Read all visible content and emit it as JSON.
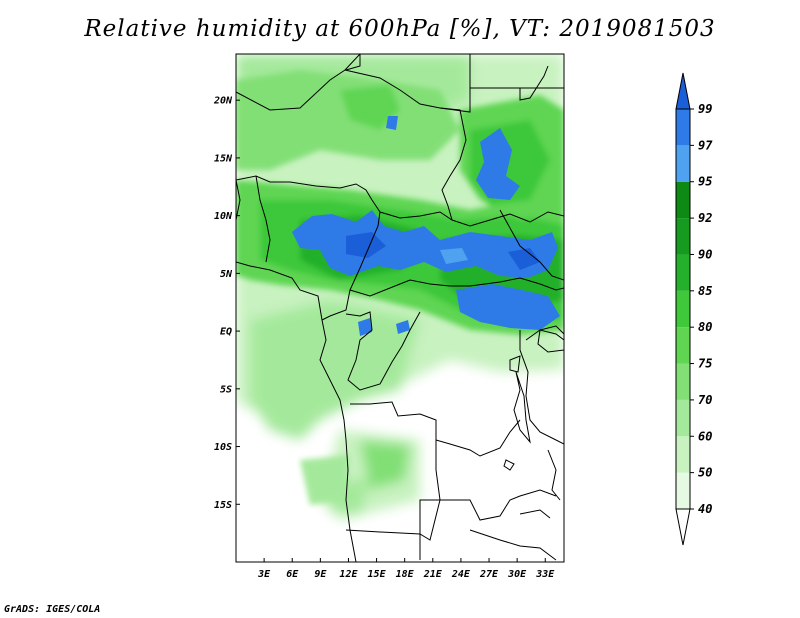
{
  "title": "Relative humidity at 600hPa [%], VT: 2019081503",
  "credit": "GrADS: IGES/COLA",
  "map": {
    "lon_range": [
      0,
      35
    ],
    "lat_range": [
      -20,
      24
    ],
    "x_ticks": [
      {
        "lon": 3,
        "label": "3E"
      },
      {
        "lon": 6,
        "label": "6E"
      },
      {
        "lon": 9,
        "label": "9E"
      },
      {
        "lon": 12,
        "label": "12E"
      },
      {
        "lon": 15,
        "label": "15E"
      },
      {
        "lon": 18,
        "label": "18E"
      },
      {
        "lon": 21,
        "label": "21E"
      },
      {
        "lon": 24,
        "label": "24E"
      },
      {
        "lon": 27,
        "label": "27E"
      },
      {
        "lon": 30,
        "label": "30E"
      },
      {
        "lon": 33,
        "label": "33E"
      }
    ],
    "y_ticks": [
      {
        "lat": 20,
        "label": "20N"
      },
      {
        "lat": 15,
        "label": "15N"
      },
      {
        "lat": 10,
        "label": "10N"
      },
      {
        "lat": 5,
        "label": "5N"
      },
      {
        "lat": 0,
        "label": "EQ"
      },
      {
        "lat": -5,
        "label": "5S"
      },
      {
        "lat": -10,
        "label": "10S"
      },
      {
        "lat": -15,
        "label": "15S"
      }
    ]
  },
  "colorbar": {
    "levels": [
      "40",
      "50",
      "60",
      "70",
      "75",
      "80",
      "85",
      "90",
      "92",
      "95",
      "97",
      "99"
    ],
    "colors": [
      "#ffffff",
      "#e6f9e3",
      "#c8f2c0",
      "#a4e99b",
      "#82df76",
      "#5fd552",
      "#3ec83a",
      "#24b02a",
      "#169a20",
      "#0c8a14",
      "#4fa2f0",
      "#2e7be8",
      "#1a5ed8"
    ]
  },
  "chart_data": {
    "type": "heatmap",
    "title": "Relative humidity at 600hPa [%], VT: 2019081503",
    "variable": "Relative humidity at 600hPa",
    "units": "%",
    "valid_time": "2019081503",
    "xlim": [
      0,
      35
    ],
    "ylim": [
      -20,
      24
    ],
    "contour_levels": [
      40,
      50,
      60,
      70,
      75,
      80,
      85,
      90,
      92,
      95,
      97,
      99
    ],
    "humid_zones": [
      {
        "lon": [
          6,
          22
        ],
        "lat": [
          5.5,
          11
        ],
        "value": 96
      },
      {
        "lon": [
          22,
          35
        ],
        "lat": [
          4,
          10
        ],
        "value": 96
      },
      {
        "lon": [
          25,
          29
        ],
        "lat": [
          12.5,
          17
        ],
        "value": 96
      },
      {
        "lon": [
          20,
          33
        ],
        "lat": [
          0.5,
          4
        ],
        "value": 95
      },
      {
        "lon": [
          13,
          16
        ],
        "lat": [
          0.5,
          2.5
        ],
        "value": 95
      },
      {
        "lon": [
          1,
          35
        ],
        "lat": [
          -3,
          13
        ],
        "value": 82
      },
      {
        "lon": [
          0,
          20
        ],
        "lat": [
          14,
          24
        ],
        "value": 72
      },
      {
        "lon": [
          10,
          18
        ],
        "lat": [
          -17,
          -9
        ],
        "value": 60
      }
    ]
  }
}
